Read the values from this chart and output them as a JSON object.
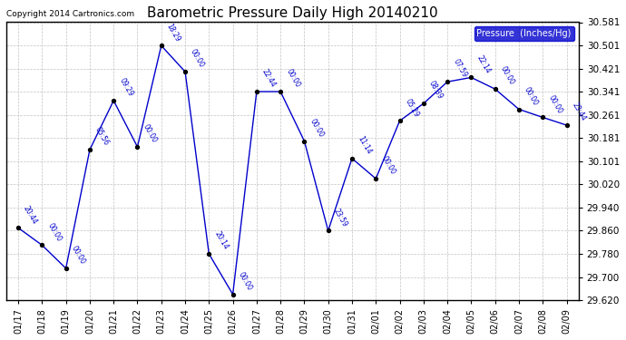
{
  "title": "Barometric Pressure Daily High 20140210",
  "copyright": "Copyright 2014 Cartronics.com",
  "legend_label": "Pressure  (Inches/Hg)",
  "xlabels": [
    "01/17",
    "01/18",
    "01/19",
    "01/20",
    "01/21",
    "01/22",
    "01/23",
    "01/24",
    "01/25",
    "01/26",
    "01/27",
    "01/28",
    "01/29",
    "01/30",
    "01/31",
    "02/01",
    "02/02",
    "02/03",
    "02/04",
    "02/05",
    "02/06",
    "02/07",
    "02/08",
    "02/09"
  ],
  "x_indices": [
    0,
    1,
    2,
    3,
    4,
    5,
    6,
    7,
    8,
    9,
    10,
    11,
    12,
    13,
    14,
    15,
    16,
    17,
    18,
    19,
    20,
    21,
    22,
    23
  ],
  "y_values": [
    29.87,
    29.81,
    29.73,
    30.14,
    30.31,
    30.15,
    30.5,
    30.41,
    29.78,
    29.64,
    30.341,
    30.341,
    30.17,
    29.86,
    30.11,
    30.04,
    30.24,
    30.3,
    30.375,
    30.39,
    30.35,
    30.28,
    30.252,
    30.225
  ],
  "time_labels": [
    "20:44",
    "00:00",
    "00:00",
    "05:56",
    "09:29",
    "00:00",
    "18:29",
    "00:00",
    "20:14",
    "00:00",
    "22:44",
    "00:00",
    "00:00",
    "23:59",
    "11:14",
    "00:00",
    "05:29",
    "08:39",
    "07:59",
    "22:14",
    "00:00",
    "00:00",
    "00:00",
    "23:44"
  ],
  "ylim_min": 29.62,
  "ylim_max": 30.581,
  "yticks": [
    29.62,
    29.7,
    29.78,
    29.86,
    29.94,
    30.02,
    30.101,
    30.181,
    30.261,
    30.341,
    30.421,
    30.501,
    30.581
  ],
  "line_color": "#0000cc",
  "marker_color": "#000000",
  "bg_color": "#ffffff",
  "grid_color": "#bbbbbb",
  "title_color": "#000000",
  "legend_bg": "#0000cc",
  "legend_text": "#ffffff"
}
